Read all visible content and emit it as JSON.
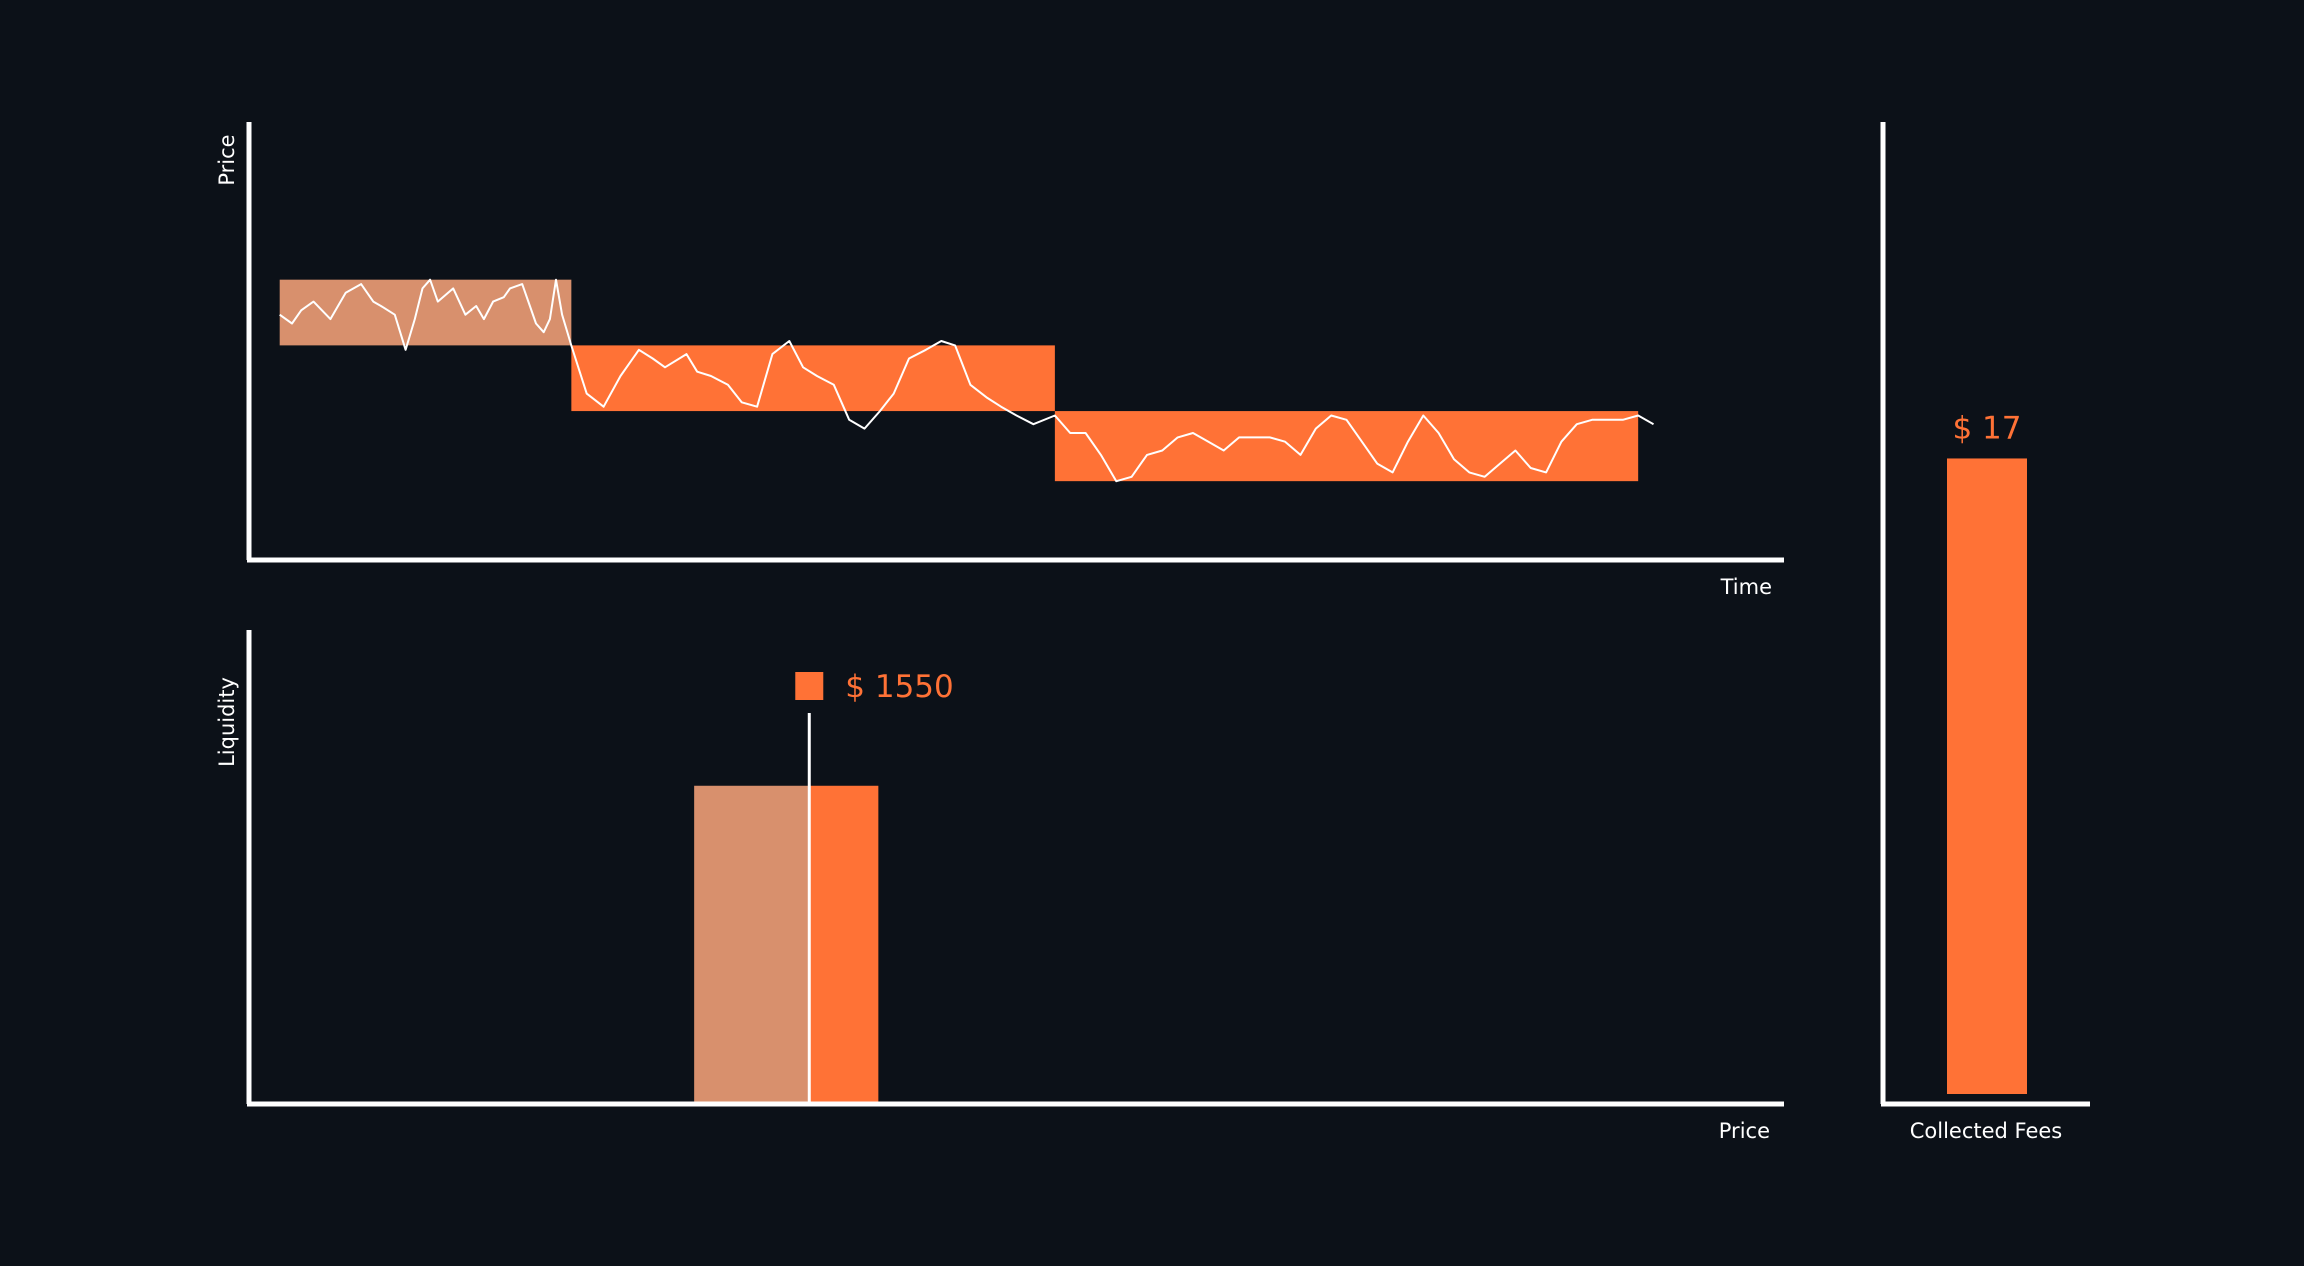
{
  "colors": {
    "background": "#0c1118",
    "axis": "#ffffff",
    "accent": "#ff7236",
    "accent_muted": "#d8906d",
    "line": "#ffffff"
  },
  "chart_data": [
    {
      "type": "line",
      "xlabel": "Time",
      "ylabel": "Price",
      "grid": false,
      "xlim": [
        0,
        100
      ],
      "ylim": [
        0,
        100
      ],
      "ranges": [
        {
          "x0": 2,
          "x1": 21,
          "y0": 49,
          "y1": 64,
          "status": "past"
        },
        {
          "x0": 21,
          "x1": 52.5,
          "y0": 34,
          "y1": 49,
          "status": "active"
        },
        {
          "x0": 52.5,
          "x1": 90.5,
          "y0": 18,
          "y1": 34,
          "status": "active"
        }
      ],
      "series": [
        {
          "x": [
            2,
            2.8,
            3.4,
            4.2,
            5.3,
            5.8,
            6.3,
            7.3,
            8.1,
            8.6,
            9.5,
            10.2,
            10.8,
            11.3,
            11.8,
            12.3,
            13.3,
            14.1,
            14.8,
            15.3,
            15.9,
            16.6,
            17,
            17.8,
            18.3,
            18.7,
            19.2,
            19.6,
            20,
            20.4,
            21,
            22,
            23.1,
            24.2,
            25.4,
            26.3,
            27.1,
            28.5,
            29.2,
            30.1,
            31.2,
            32.1,
            33.1,
            34.1,
            35.2,
            36.1,
            37,
            38.1,
            39.1,
            40.1,
            41.1,
            42,
            43,
            44.1,
            45.1,
            46,
            47,
            48.1,
            49,
            50,
            51.1,
            52.5,
            53.5,
            54.5,
            55.5,
            56.5,
            57.5,
            58.5,
            59.5,
            60.5,
            61.5,
            62.5,
            63.5,
            64.5,
            65.5,
            66.5,
            67.5,
            68.5,
            69.5,
            70.5,
            71.5,
            72.5,
            73.5,
            74.5,
            75.5,
            76.5,
            77.5,
            78.5,
            79.5,
            80.5,
            81.5,
            82.5,
            83.5,
            84.5,
            85.5,
            86.5,
            87.5,
            88.5,
            89.5,
            90.5,
            91.5
          ],
          "y": [
            56,
            54,
            57,
            59,
            55,
            58,
            61,
            63,
            59,
            58,
            56,
            48,
            55,
            62,
            64,
            59,
            62,
            56,
            58,
            55,
            59,
            60,
            62,
            63,
            58,
            54,
            52,
            55,
            64,
            56,
            49,
            38,
            35,
            42,
            48,
            46,
            44,
            47,
            43,
            42,
            40,
            36,
            35,
            47,
            50,
            44,
            42,
            40,
            32,
            30,
            34,
            38,
            46,
            48,
            50,
            49,
            40,
            37,
            35,
            33,
            31,
            33,
            29,
            29,
            24,
            18,
            19,
            24,
            25,
            28,
            29,
            27,
            25,
            28,
            28,
            28,
            27,
            24,
            30,
            33,
            32,
            27,
            22,
            20,
            27,
            33,
            29,
            23,
            20,
            19,
            22,
            25,
            21,
            20,
            27,
            31,
            32,
            32,
            32,
            33,
            31
          ]
        }
      ]
    },
    {
      "type": "bar",
      "xlabel": "Price",
      "ylabel": "Liquidity",
      "grid": false,
      "xlim": [
        0,
        100
      ],
      "ylim": [
        0,
        100
      ],
      "bars": [
        {
          "x0": 29,
          "x1": 36.5,
          "value": 67,
          "status": "past"
        },
        {
          "x0": 36.5,
          "x1": 41,
          "value": 67,
          "status": "active"
        }
      ],
      "marker": {
        "x": 36.5,
        "label": "$ 1550"
      }
    },
    {
      "type": "bar",
      "categories": [
        "Collected Fees"
      ],
      "values": [
        17
      ],
      "ylim": [
        0,
        26
      ],
      "xlabel": "Collected Fees",
      "data_labels": [
        "$ 17"
      ]
    }
  ]
}
